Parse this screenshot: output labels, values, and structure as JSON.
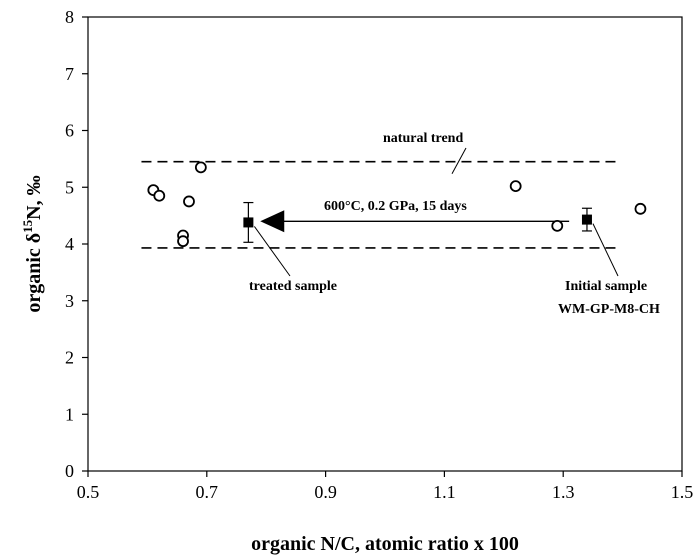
{
  "chart_data": {
    "type": "scatter",
    "xlabel": "organic N/C, atomic ratio x 100",
    "ylabel_parts": {
      "prefix": "organic δ",
      "sup": "15",
      "suffix": "N, ‰"
    },
    "xlim": [
      0.5,
      1.5
    ],
    "ylim": [
      0,
      8
    ],
    "x_ticks": [
      0.5,
      0.7,
      0.9,
      1.1,
      1.3,
      1.5
    ],
    "x_tick_labels": [
      "0.5",
      "0.7",
      "0.9",
      "1.1",
      "1.3",
      "1.5"
    ],
    "y_ticks": [
      0,
      1,
      2,
      3,
      4,
      5,
      6,
      7,
      8
    ],
    "y_tick_labels": [
      "0",
      "1",
      "2",
      "3",
      "4",
      "5",
      "6",
      "7",
      "8"
    ],
    "grid": false,
    "natural_samples": [
      {
        "x": 0.61,
        "y": 4.95
      },
      {
        "x": 0.62,
        "y": 4.85
      },
      {
        "x": 0.69,
        "y": 5.35
      },
      {
        "x": 0.67,
        "y": 4.75
      },
      {
        "x": 0.66,
        "y": 4.15
      },
      {
        "x": 0.66,
        "y": 4.05
      },
      {
        "x": 1.22,
        "y": 5.02
      },
      {
        "x": 1.29,
        "y": 4.32
      },
      {
        "x": 1.43,
        "y": 4.62
      }
    ],
    "experimental_samples": [
      {
        "x": 0.77,
        "y": 4.38,
        "err": 0.35
      },
      {
        "x": 1.34,
        "y": 4.43,
        "err": 0.2
      }
    ],
    "trend_lines": [
      {
        "x1": 0.59,
        "x2": 1.39,
        "y": 5.45
      },
      {
        "x1": 0.59,
        "x2": 1.39,
        "y": 3.93
      }
    ],
    "arrow": {
      "x_from": 1.31,
      "x_to": 0.79,
      "y": 4.4
    },
    "annotations": {
      "natural_trend": "natural trend",
      "conditions": "600°C, 0.2 GPa, 15 days",
      "treated": "treated sample",
      "initial_line1": "Initial sample",
      "initial_line2": "WM-GP-M8-CH"
    }
  }
}
